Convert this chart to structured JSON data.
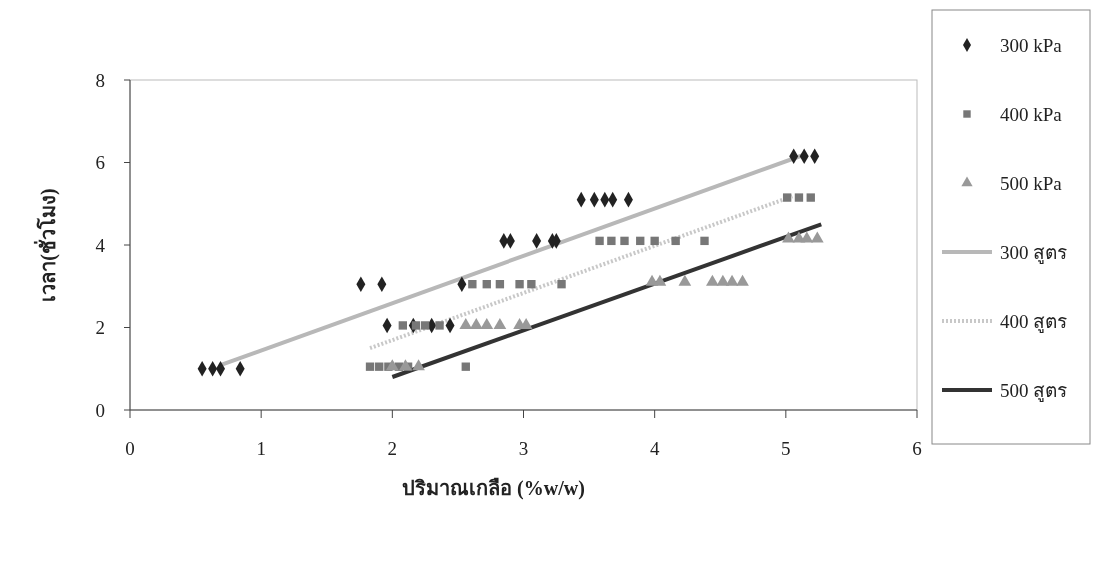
{
  "chart_data": {
    "type": "scatter",
    "xlabel": "ปริมาณเกลือ (%w/w)",
    "ylabel": "เวลา(ชั่วโมง)",
    "xlim": [
      0,
      6
    ],
    "ylim": [
      0,
      8
    ],
    "xticks": [
      0,
      1,
      2,
      3,
      4,
      5,
      6
    ],
    "yticks": [
      0,
      2,
      4,
      6,
      8
    ],
    "grid": false,
    "legend": "right",
    "series": [
      {
        "name": "300 kPa",
        "marker": "diamond",
        "color": "#222222",
        "x": [
          0.55,
          0.63,
          0.69,
          0.84,
          1.76,
          1.92,
          1.96,
          2.16,
          2.3,
          2.44,
          2.53,
          2.85,
          2.9,
          3.1,
          3.22,
          3.25,
          3.44,
          3.54,
          3.62,
          3.68,
          3.8,
          5.06,
          5.14,
          5.22
        ],
        "values": [
          1,
          1,
          1,
          1,
          3.05,
          3.05,
          2.05,
          2.05,
          2.05,
          2.05,
          3.05,
          4.1,
          4.1,
          4.1,
          4.1,
          4.1,
          5.1,
          5.1,
          5.1,
          5.1,
          5.1,
          6.15,
          6.15,
          6.15
        ]
      },
      {
        "name": "400 kPa",
        "marker": "square",
        "color": "#777777",
        "x": [
          1.83,
          1.9,
          1.97,
          2.05,
          2.12,
          2.56,
          2.08,
          2.18,
          2.25,
          2.36,
          2.61,
          2.72,
          2.82,
          2.97,
          3.06,
          3.29,
          3.58,
          3.67,
          3.77,
          3.89,
          4.0,
          4.16,
          4.38,
          5.01,
          5.1,
          5.19
        ],
        "values": [
          1.05,
          1.05,
          1.05,
          1.05,
          1.05,
          1.05,
          2.05,
          2.05,
          2.05,
          2.05,
          3.05,
          3.05,
          3.05,
          3.05,
          3.05,
          3.05,
          4.1,
          4.1,
          4.1,
          4.1,
          4.1,
          4.1,
          4.1,
          5.15,
          5.15,
          5.15
        ]
      },
      {
        "name": "500 kPa",
        "marker": "triangle",
        "color": "#999999",
        "x": [
          2.0,
          2.1,
          2.2,
          2.56,
          2.64,
          2.72,
          2.82,
          2.97,
          3.02,
          3.98,
          4.04,
          4.23,
          4.44,
          4.52,
          4.59,
          4.67,
          5.02,
          5.1,
          5.16,
          5.24
        ],
        "values": [
          1.05,
          1.05,
          1.05,
          2.05,
          2.05,
          2.05,
          2.05,
          2.05,
          2.05,
          3.1,
          3.1,
          3.1,
          3.1,
          3.1,
          3.1,
          3.1,
          4.15,
          4.15,
          4.15,
          4.15
        ]
      },
      {
        "name": "300 สูตร",
        "type": "line",
        "marker": "none",
        "line_style": "solid",
        "color": "#b8b8b8",
        "x": [
          0.7,
          5.15
        ],
        "values": [
          1.1,
          6.2
        ]
      },
      {
        "name": "400 สูตร",
        "type": "line",
        "marker": "none",
        "line_style": "dotted",
        "color": "#c8c8c8",
        "x": [
          1.83,
          5.05
        ],
        "values": [
          1.5,
          5.18
        ]
      },
      {
        "name": "500 สูตร",
        "type": "line",
        "marker": "none",
        "line_style": "solid",
        "color": "#333333",
        "x": [
          2.0,
          5.27
        ],
        "values": [
          0.8,
          4.5
        ]
      }
    ]
  }
}
